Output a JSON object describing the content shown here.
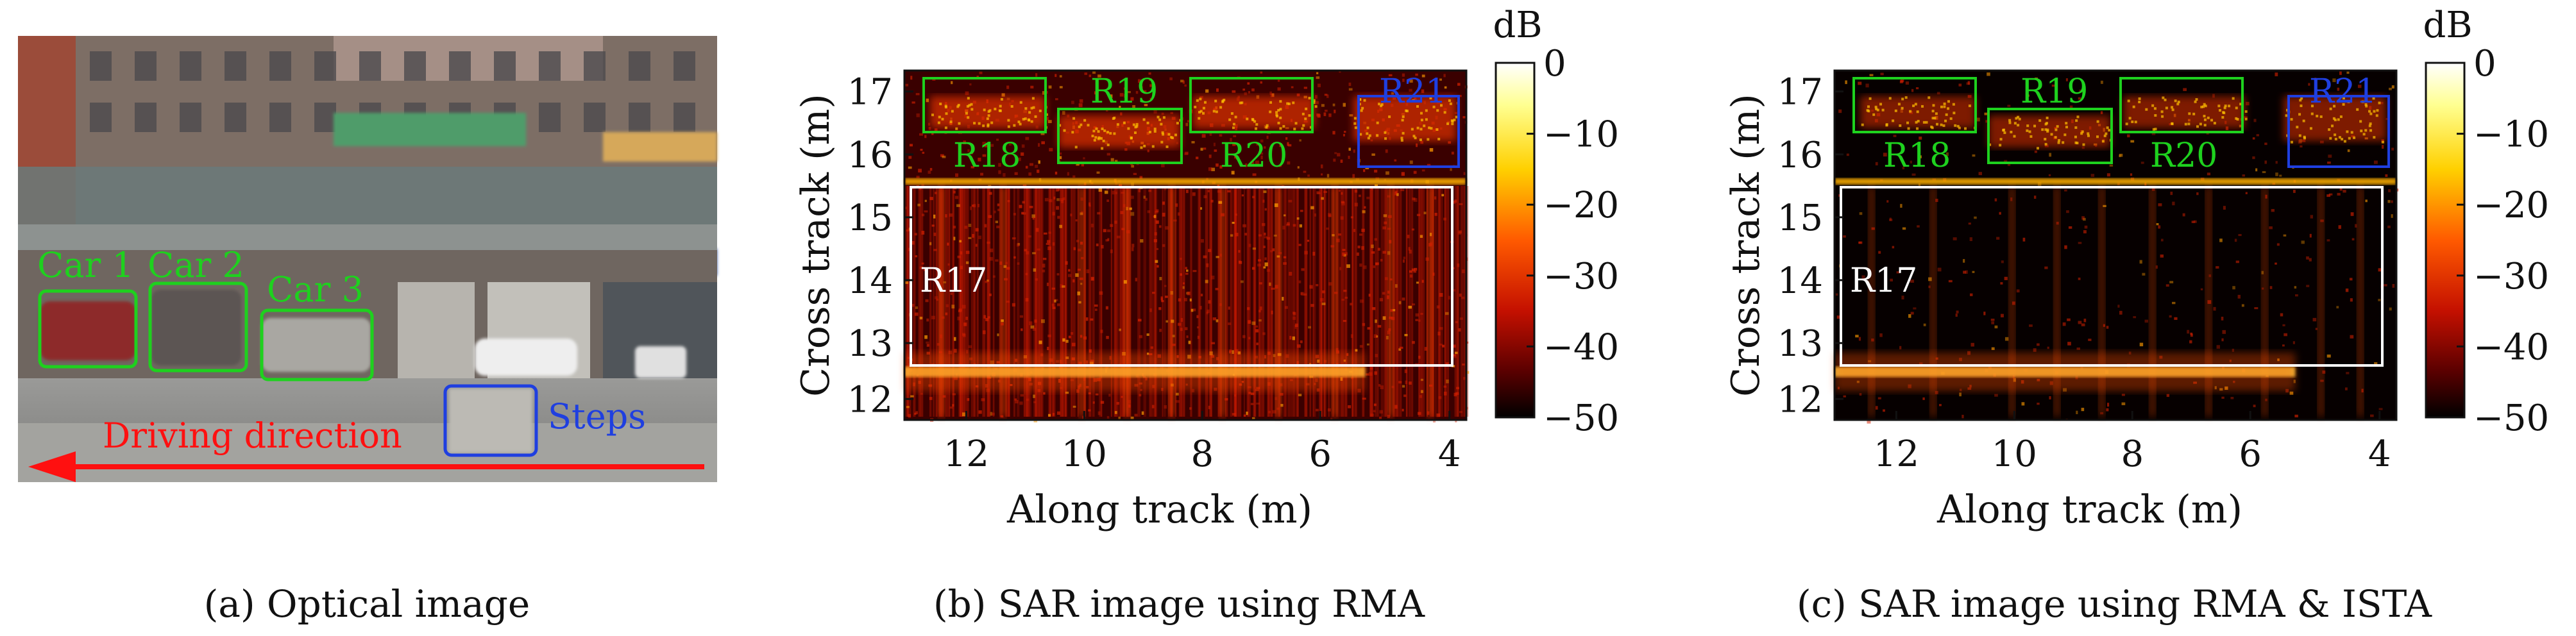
{
  "colors": {
    "green": "#1ed11e",
    "blue": "#1f3fe0",
    "red": "#ff1010",
    "white": "#ffffff",
    "axis": "#111111"
  },
  "panel_a": {
    "caption": "(a) Optical image",
    "labels": {
      "car1": "Car 1",
      "car2": "Car 2",
      "car3": "Car 3",
      "steps": "Steps",
      "driving": "Driving direction"
    }
  },
  "sar_panels": [
    {
      "caption": "(b) SAR image using RMA",
      "xlabel": "Along track (m)",
      "ylabel": "Cross track (m)",
      "xticks": [
        "12",
        "10",
        "8",
        "6",
        "4"
      ],
      "yticks": [
        "17",
        "16",
        "15",
        "14",
        "13",
        "12"
      ],
      "colorbar_unit": "dB",
      "colorbar_ticks": [
        "0",
        "−10",
        "−20",
        "−30",
        "−40",
        "−50"
      ],
      "regions": {
        "r17": "R17",
        "r18": "R18",
        "r19": "R19",
        "r20": "R20",
        "r21": "R21"
      }
    },
    {
      "caption": "(c) SAR image using RMA & ISTA",
      "xlabel": "Along track (m)",
      "ylabel": "Cross track (m)",
      "xticks": [
        "12",
        "10",
        "8",
        "6",
        "4"
      ],
      "yticks": [
        "17",
        "16",
        "15",
        "14",
        "13",
        "12"
      ],
      "colorbar_unit": "dB",
      "colorbar_ticks": [
        "0",
        "−10",
        "−20",
        "−30",
        "−40",
        "−50"
      ],
      "regions": {
        "r17": "R17",
        "r18": "R18",
        "r19": "R19",
        "r20": "R20",
        "r21": "R21"
      }
    }
  ]
}
